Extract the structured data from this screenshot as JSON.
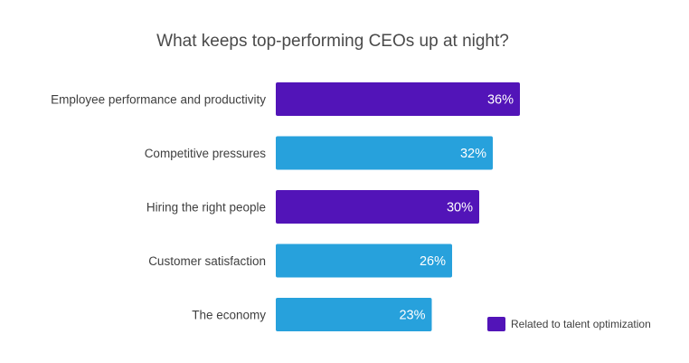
{
  "chart_data": {
    "type": "bar",
    "orientation": "horizontal",
    "title": "What keeps top-performing CEOs up at night?",
    "categories": [
      "Employee performance and productivity",
      "Competitive pressures",
      "Hiring the right people",
      "Customer satisfaction",
      "The economy"
    ],
    "values": [
      36,
      32,
      30,
      26,
      23
    ],
    "value_labels": [
      "36%",
      "32%",
      "30%",
      "26%",
      "23%"
    ],
    "highlighted": [
      true,
      false,
      true,
      false,
      false
    ],
    "colors": {
      "highlight": "#5214b8",
      "default": "#27a1dc"
    },
    "xlim": [
      0,
      40
    ],
    "grid": false,
    "legend": {
      "position": "bottom-right",
      "entries": [
        {
          "label": "Related to talent optimization",
          "color": "#5214b8"
        }
      ]
    }
  }
}
